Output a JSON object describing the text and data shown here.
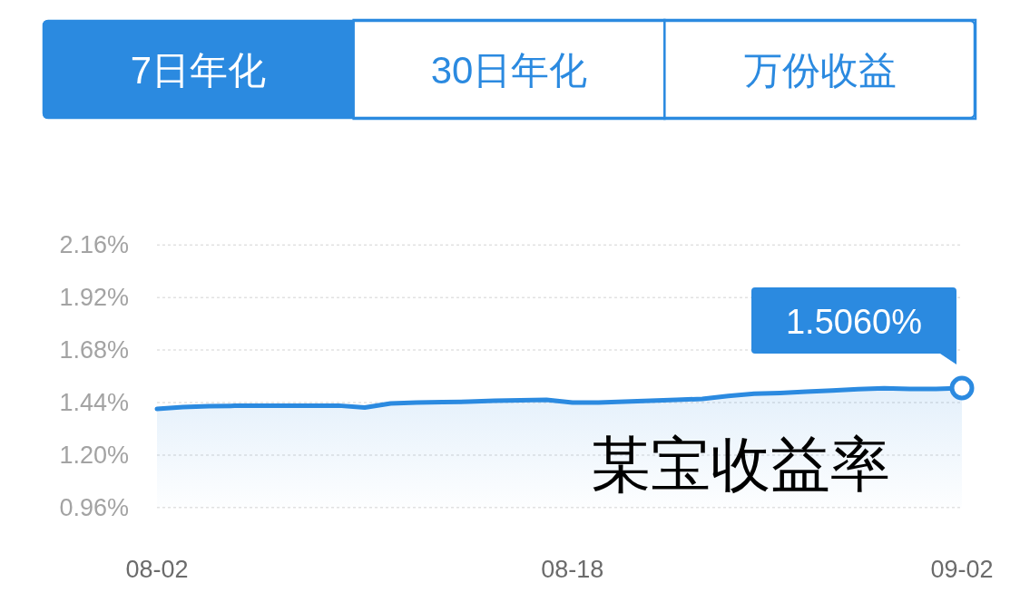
{
  "chart_data": {
    "type": "area",
    "x": [
      "--08-02",
      "--08-03",
      "--08-04",
      "--08-05",
      "--08-06",
      "--08-07",
      "--08-08",
      "--08-09",
      "--08-10",
      "--08-11",
      "--08-12",
      "--08-13",
      "--08-14",
      "--08-15",
      "--08-16",
      "--08-17",
      "--08-18",
      "--08-19",
      "--08-20",
      "--08-21",
      "--08-22",
      "--08-23",
      "--08-24",
      "--08-25",
      "--08-26",
      "--08-27",
      "--08-28",
      "--08-29",
      "--08-30",
      "--08-31",
      "--09-01",
      "--09-02"
    ],
    "values": [
      1.411,
      1.419,
      1.423,
      1.425,
      1.426,
      1.426,
      1.426,
      1.426,
      1.417,
      1.436,
      1.44,
      1.442,
      1.444,
      1.448,
      1.45,
      1.452,
      1.44,
      1.44,
      1.444,
      1.448,
      1.452,
      1.457,
      1.47,
      1.48,
      1.484,
      1.49,
      1.495,
      1.501,
      1.505,
      1.502,
      1.502,
      1.506
    ],
    "color": "#2b8ae0",
    "xlim": [
      "--08-02",
      "--09-02"
    ],
    "xticks": [
      {
        "value": "--08-02",
        "label": "08-02"
      },
      {
        "value": "--08-18",
        "label": "08-18"
      },
      {
        "value": "--09-02",
        "label": "09-02"
      }
    ],
    "ylim": [
      0.96,
      2.16
    ],
    "yticks": [
      {
        "value": 0.96,
        "label": "0.96%"
      },
      {
        "value": 1.2,
        "label": "1.20%"
      },
      {
        "value": 1.44,
        "label": "1.44%"
      },
      {
        "value": 1.68,
        "label": "1.68%"
      },
      {
        "value": 1.92,
        "label": "1.92%"
      },
      {
        "value": 2.16,
        "label": "2.16%"
      }
    ],
    "grid": "y",
    "annotations": [
      "7日年化",
      "30日年化",
      "万份收益",
      "某宝收益率",
      {
        "text": "1.5060%",
        "x": "--09-02",
        "y": 1.506
      }
    ]
  }
}
